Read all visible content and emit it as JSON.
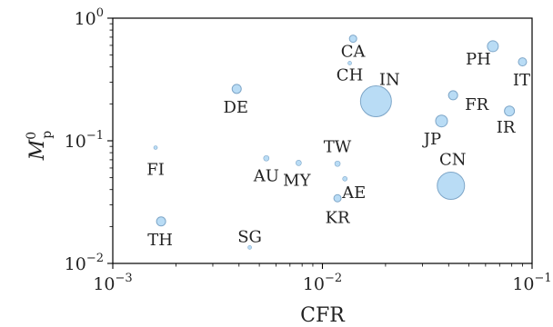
{
  "chart_data": {
    "type": "scatter",
    "xlabel": "CFR",
    "ylabel_base": "M",
    "ylabel_sup": "0",
    "ylabel_sub": "p",
    "xscale": "log",
    "yscale": "log",
    "xlim": [
      0.001,
      0.1
    ],
    "ylim": [
      0.01,
      1.0
    ],
    "x_ticks": [
      {
        "base": "10",
        "exp": "−3"
      },
      {
        "base": "10",
        "exp": "−2"
      },
      {
        "base": "10",
        "exp": "−1"
      }
    ],
    "y_ticks": [
      {
        "base": "10",
        "exp": "−2"
      },
      {
        "base": "10",
        "exp": "−1"
      },
      {
        "base": "10",
        "exp": "0"
      }
    ],
    "grid": false,
    "marker_color": "#b9dcf5",
    "marker_edge": "#7ea6c8",
    "points": [
      {
        "label": "CA",
        "x": 0.014,
        "y": 0.68,
        "size": 3
      },
      {
        "label": "CH",
        "x": 0.0135,
        "y": 0.43,
        "size": 1
      },
      {
        "label": "IN",
        "x": 0.018,
        "y": 0.21,
        "size": 16
      },
      {
        "label": "PH",
        "x": 0.065,
        "y": 0.59,
        "size": 5
      },
      {
        "label": "IT",
        "x": 0.09,
        "y": 0.44,
        "size": 3.5
      },
      {
        "label": "FR",
        "x": 0.042,
        "y": 0.235,
        "size": 4
      },
      {
        "label": "IR",
        "x": 0.078,
        "y": 0.175,
        "size": 4.5
      },
      {
        "label": "JP",
        "x": 0.037,
        "y": 0.145,
        "size": 5.5
      },
      {
        "label": "DE",
        "x": 0.0039,
        "y": 0.265,
        "size": 4
      },
      {
        "label": "FI",
        "x": 0.0016,
        "y": 0.088,
        "size": 1
      },
      {
        "label": "AU",
        "x": 0.0054,
        "y": 0.072,
        "size": 2
      },
      {
        "label": "MY",
        "x": 0.0077,
        "y": 0.066,
        "size": 2
      },
      {
        "label": "TW",
        "x": 0.0118,
        "y": 0.065,
        "size": 2
      },
      {
        "label": "AE",
        "x": 0.0128,
        "y": 0.049,
        "size": 1.5
      },
      {
        "label": "KR",
        "x": 0.0118,
        "y": 0.034,
        "size": 3
      },
      {
        "label": "CN",
        "x": 0.041,
        "y": 0.043,
        "size": 14
      },
      {
        "label": "TH",
        "x": 0.0017,
        "y": 0.022,
        "size": 4
      },
      {
        "label": "SG",
        "x": 0.0045,
        "y": 0.0135,
        "size": 1
      }
    ]
  }
}
